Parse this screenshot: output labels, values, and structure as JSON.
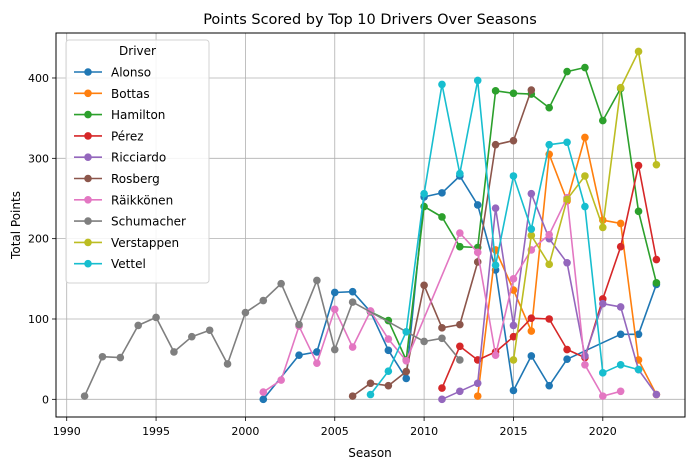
{
  "chart_data": {
    "type": "line",
    "title": "Points Scored by Top 10 Drivers Over Seasons",
    "xlabel": "Season",
    "ylabel": "Total Points",
    "xlim": [
      1989.4,
      2024.6
    ],
    "ylim": [
      -22,
      456
    ],
    "xticks": [
      1990,
      1995,
      2000,
      2005,
      2010,
      2015,
      2020
    ],
    "yticks": [
      0,
      100,
      200,
      300,
      400
    ],
    "grid": true,
    "legend": {
      "title": "Driver",
      "placement": "top-left"
    },
    "series": [
      {
        "name": "Alonso",
        "color": "#1f77b4",
        "x": [
          2001,
          2003,
          2004,
          2005,
          2006,
          2007,
          2008,
          2009,
          2010,
          2011,
          2012,
          2013,
          2014,
          2015,
          2016,
          2017,
          2018,
          2021,
          2022,
          2023
        ],
        "y": [
          0,
          55,
          59,
          133,
          134,
          109,
          61,
          26,
          252,
          257,
          278,
          242,
          161,
          11,
          54,
          17,
          50,
          81,
          81,
          143
        ]
      },
      {
        "name": "Bottas",
        "color": "#ff7f0e",
        "x": [
          2013,
          2014,
          2015,
          2016,
          2017,
          2018,
          2019,
          2020,
          2021,
          2022,
          2023
        ],
        "y": [
          4,
          186,
          136,
          85,
          305,
          247,
          326,
          223,
          219,
          49,
          6
        ]
      },
      {
        "name": "Hamilton",
        "color": "#2ca02c",
        "x": [
          2007,
          2008,
          2009,
          2010,
          2011,
          2012,
          2013,
          2014,
          2015,
          2016,
          2017,
          2018,
          2019,
          2020,
          2021,
          2022,
          2023
        ],
        "y": [
          109,
          98,
          49,
          240,
          227,
          190,
          189,
          384,
          381,
          380,
          363,
          408,
          413,
          347,
          387,
          234,
          145
        ]
      },
      {
        "name": "Pérez",
        "color": "#d62728",
        "x": [
          2011,
          2012,
          2013,
          2014,
          2015,
          2016,
          2017,
          2018,
          2019,
          2020,
          2021,
          2022,
          2023
        ],
        "y": [
          14,
          66,
          49,
          59,
          78,
          101,
          100,
          62,
          52,
          125,
          190,
          291,
          174
        ]
      },
      {
        "name": "Ricciardo",
        "color": "#9467bd",
        "x": [
          2011,
          2012,
          2013,
          2014,
          2015,
          2016,
          2017,
          2018,
          2019,
          2020,
          2021,
          2022,
          2023
        ],
        "y": [
          0,
          10,
          20,
          238,
          92,
          256,
          200,
          170,
          54,
          119,
          115,
          37,
          6
        ]
      },
      {
        "name": "Rosberg",
        "color": "#8c564b",
        "x": [
          2006,
          2007,
          2008,
          2009,
          2010,
          2011,
          2012,
          2013,
          2014,
          2015,
          2016
        ],
        "y": [
          4,
          20,
          17,
          34.5,
          142,
          89,
          93,
          171,
          317,
          322,
          385
        ]
      },
      {
        "name": "Räikkönen",
        "color": "#e377c2",
        "x": [
          2001,
          2002,
          2003,
          2004,
          2005,
          2006,
          2007,
          2008,
          2009,
          2012,
          2013,
          2014,
          2015,
          2016,
          2017,
          2018,
          2019,
          2020,
          2021
        ],
        "y": [
          9,
          24,
          91,
          45,
          112,
          65,
          110,
          75,
          48,
          207,
          183,
          55,
          150,
          186,
          205,
          251,
          43,
          4,
          10
        ]
      },
      {
        "name": "Schumacher",
        "color": "#7f7f7f",
        "x": [
          1991,
          1992,
          1993,
          1994,
          1995,
          1996,
          1997,
          1998,
          1999,
          2000,
          2001,
          2002,
          2003,
          2004,
          2005,
          2006,
          2010,
          2011,
          2012
        ],
        "y": [
          4,
          53,
          52,
          92,
          102,
          59,
          78,
          86,
          44,
          108,
          123,
          144,
          93,
          148,
          62,
          121,
          72,
          76,
          49
        ]
      },
      {
        "name": "Verstappen",
        "color": "#bcbd22",
        "x": [
          2015,
          2016,
          2017,
          2018,
          2019,
          2020,
          2021,
          2022,
          2023
        ],
        "y": [
          49,
          204,
          168,
          249,
          278,
          214,
          388,
          433,
          292
        ]
      },
      {
        "name": "Vettel",
        "color": "#17becf",
        "x": [
          2007,
          2008,
          2009,
          2010,
          2011,
          2012,
          2013,
          2014,
          2015,
          2016,
          2017,
          2018,
          2019,
          2020,
          2021,
          2022
        ],
        "y": [
          6,
          35,
          84,
          256,
          392,
          281,
          397,
          167,
          278,
          212,
          317,
          320,
          240,
          33,
          43,
          37
        ]
      }
    ]
  }
}
